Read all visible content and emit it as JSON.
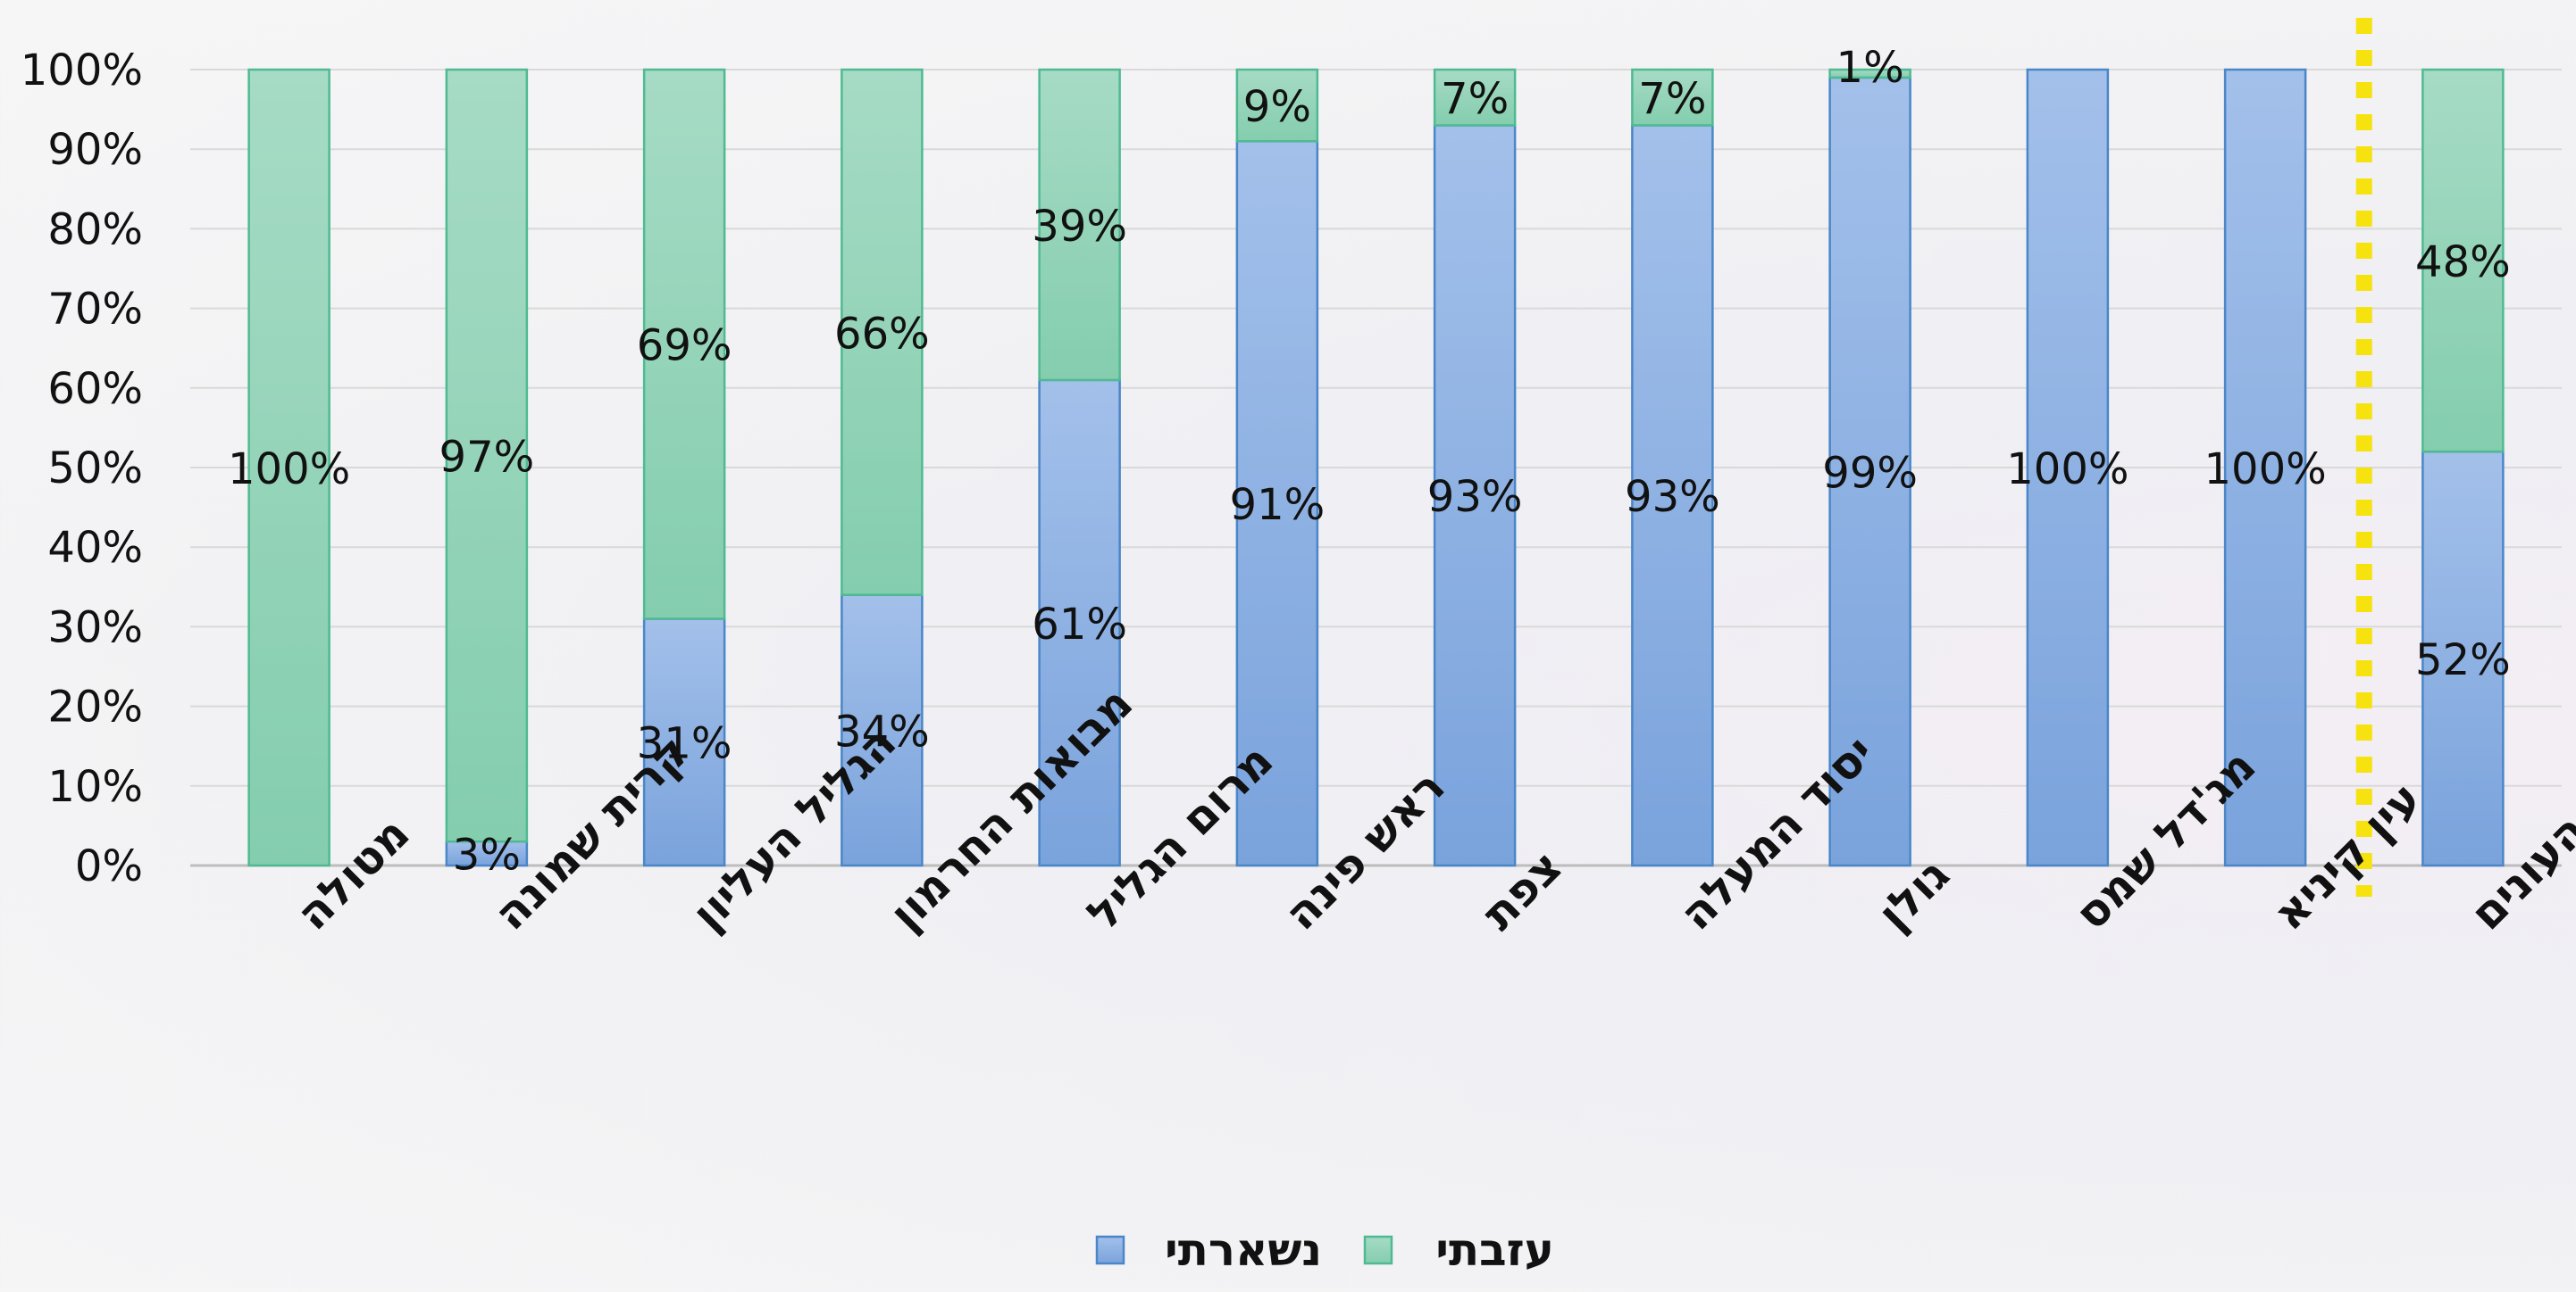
{
  "chart_data": {
    "type": "bar",
    "stacked": true,
    "normalized": true,
    "categories": [
      "מטולה",
      "קרית שמונה",
      "הגליל העליון",
      "מבואות החרמון",
      "מרום הגליל",
      "ראש פינה",
      "צפת",
      "יסוד המעלה",
      "גולן",
      "מג'דל שמס",
      "עין קיניא",
      "כלל העונים"
    ],
    "series": [
      {
        "name": "נשארתי",
        "color": "#7fa6dd",
        "values": [
          0,
          3,
          31,
          34,
          61,
          91,
          93,
          93,
          99,
          100,
          100,
          52
        ],
        "labels": [
          "",
          "3%",
          "31%",
          "34%",
          "61%",
          "91%",
          "93%",
          "93%",
          "99%",
          "100%",
          "100%",
          "52%"
        ]
      },
      {
        "name": "עזבתי",
        "color": "#8fd0b4",
        "values": [
          100,
          97,
          69,
          66,
          39,
          9,
          7,
          7,
          1,
          0,
          0,
          48
        ],
        "labels": [
          "100%",
          "97%",
          "69%",
          "66%",
          "39%",
          "9%",
          "7%",
          "7%",
          "1%",
          "",
          "",
          "48%"
        ]
      }
    ],
    "y_ticks": [
      "0%",
      "10%",
      "20%",
      "30%",
      "40%",
      "50%",
      "60%",
      "70%",
      "80%",
      "90%",
      "100%"
    ],
    "ylim": [
      0,
      100
    ],
    "grid": true,
    "legend_position": "bottom",
    "separator": {
      "style": "dotted",
      "color": "#f5e20f",
      "between_categories": [
        10,
        11
      ]
    }
  }
}
